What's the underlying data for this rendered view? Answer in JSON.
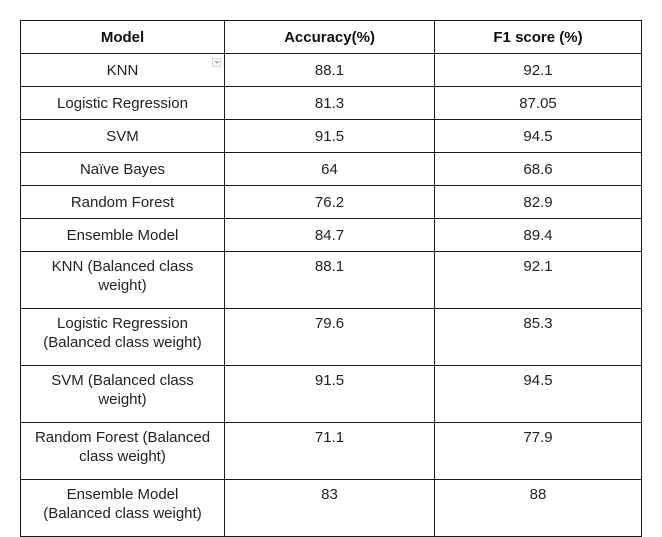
{
  "table": {
    "headers": [
      "Model",
      "Accuracy(%)",
      "F1 score (%)"
    ],
    "rows": [
      {
        "model": "KNN",
        "accuracy": "88.1",
        "f1": "92.1"
      },
      {
        "model": "Logistic Regression",
        "accuracy": "81.3",
        "f1": "87.05"
      },
      {
        "model": "SVM",
        "accuracy": "91.5",
        "f1": "94.5"
      },
      {
        "model": "Naïve Bayes",
        "accuracy": "64",
        "f1": "68.6"
      },
      {
        "model": "Random Forest",
        "accuracy": "76.2",
        "f1": "82.9"
      },
      {
        "model": "Ensemble Model",
        "accuracy": "84.7",
        "f1": "89.4"
      },
      {
        "model_line1": "KNN (Balanced class",
        "model_line2": "weight)",
        "accuracy": "88.1",
        "f1": "92.1"
      },
      {
        "model_line1": "Logistic Regression",
        "model_line2": "(Balanced class weight)",
        "accuracy": "79.6",
        "f1": "85.3"
      },
      {
        "model_line1": "SVM (Balanced class",
        "model_line2": "weight)",
        "accuracy": "91.5",
        "f1": "94.5"
      },
      {
        "model_line1": "Random Forest (Balanced",
        "model_line2": "class weight)",
        "accuracy": "71.1",
        "f1": "77.9"
      },
      {
        "model_line1": "Ensemble Model",
        "model_line2": "(Balanced class weight)",
        "accuracy": "83",
        "f1": "88"
      }
    ]
  },
  "icons": {
    "filter_dropdown": "dropdown-filter-icon"
  }
}
